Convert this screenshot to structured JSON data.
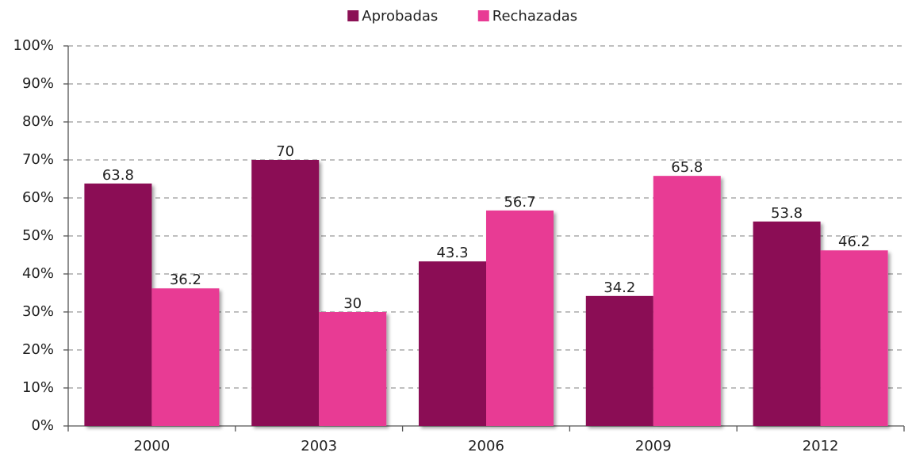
{
  "chart_data": {
    "type": "bar",
    "categories": [
      "2000",
      "2003",
      "2006",
      "2009",
      "2012"
    ],
    "series": [
      {
        "name": "Aprobadas",
        "color": "#8b1155",
        "values": [
          63.8,
          70,
          43.3,
          34.2,
          53.8
        ]
      },
      {
        "name": "Rechazadas",
        "color": "#e83a94",
        "values": [
          36.2,
          30,
          56.7,
          65.8,
          46.2
        ]
      }
    ],
    "ylim": [
      0,
      100
    ],
    "yticks": [
      {
        "value": 0,
        "label": "0%"
      },
      {
        "value": 10,
        "label": "10%"
      },
      {
        "value": 20,
        "label": "20%"
      },
      {
        "value": 30,
        "label": "30%"
      },
      {
        "value": 40,
        "label": "40%"
      },
      {
        "value": 50,
        "label": "50%"
      },
      {
        "value": 60,
        "label": "60%"
      },
      {
        "value": 70,
        "label": "70%"
      },
      {
        "value": 80,
        "label": "80%"
      },
      {
        "value": 90,
        "label": "90%"
      },
      {
        "value": 100,
        "label": "100%"
      }
    ],
    "grid": true,
    "legend": "top"
  }
}
